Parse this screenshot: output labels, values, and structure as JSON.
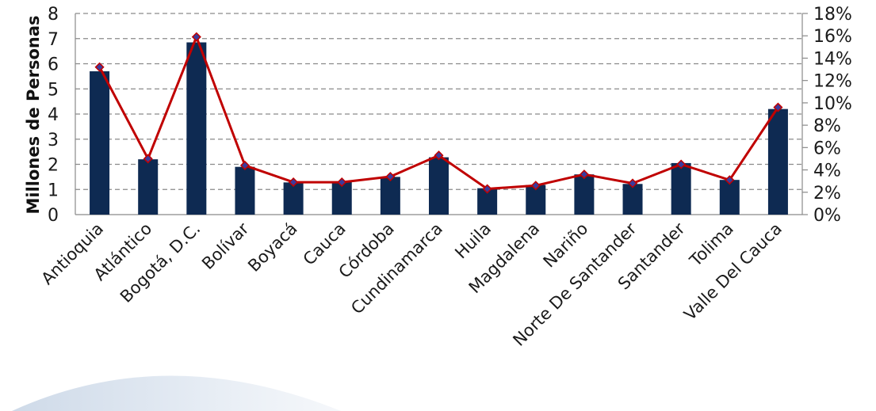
{
  "chart_data": {
    "type": "bar",
    "title": "",
    "ylabel": "Millones de Personas",
    "ylim": [
      0,
      8
    ],
    "y2lim": [
      0,
      0.18
    ],
    "yticks": [
      "0",
      "1",
      "2",
      "3",
      "4",
      "5",
      "6",
      "7",
      "8"
    ],
    "y2ticks": [
      "0%",
      "2%",
      "4%",
      "6%",
      "8%",
      "10%",
      "12%",
      "14%",
      "16%",
      "18%"
    ],
    "categories": [
      "Antioquia",
      "Atlántico",
      "Bogotá, D.C.",
      "Bolívar",
      "Boyacá",
      "Cauca",
      "Córdoba",
      "Cundinamarca",
      "Huila",
      "Magdalena",
      "Nariño",
      "Norte De Santander",
      "Santander",
      "Tolima",
      "Valle Del Cauca"
    ],
    "series": [
      {
        "type": "bar",
        "axis": "left",
        "color": "#0e2a52",
        "values": [
          5.7,
          2.2,
          6.85,
          1.9,
          1.28,
          1.32,
          1.5,
          2.28,
          1.05,
          1.18,
          1.6,
          1.22,
          2.05,
          1.38,
          4.2
        ]
      },
      {
        "type": "line",
        "axis": "right",
        "color": "#c00000",
        "marker_color": "#3b3b9c",
        "values": [
          0.132,
          0.05,
          0.159,
          0.044,
          0.029,
          0.029,
          0.034,
          0.053,
          0.023,
          0.026,
          0.036,
          0.028,
          0.045,
          0.031,
          0.096
        ]
      }
    ],
    "grid": true
  }
}
